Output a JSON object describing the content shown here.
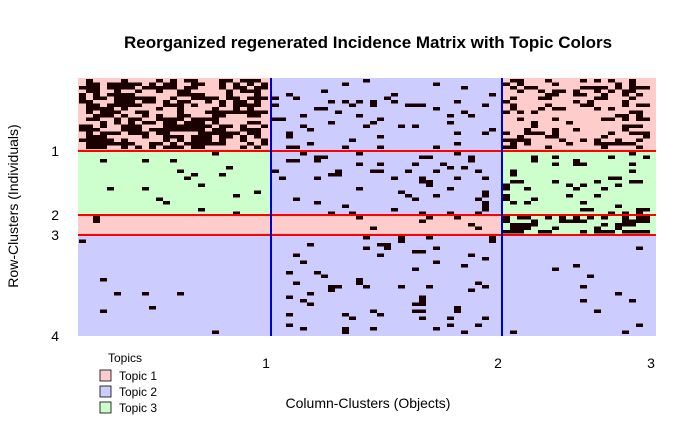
{
  "chart_data": {
    "type": "heatmap",
    "title": "Reorganized regenerated Incidence Matrix with Topic Colors",
    "xlabel": "Column-Clusters (Objects)",
    "ylabel": "Row-Clusters (Individuals)",
    "x_ticks": [
      "1",
      "2",
      "3"
    ],
    "y_ticks": [
      "1",
      "2",
      "3",
      "4"
    ],
    "legend": {
      "title": "Topics",
      "placement": "bottom-left",
      "items": [
        {
          "label": "Topic 1",
          "color": "#ffcccc"
        },
        {
          "label": "Topic 2",
          "color": "#ccccff"
        },
        {
          "label": "Topic 3",
          "color": "#ccffcc"
        }
      ]
    },
    "row_cluster_ends": [
      1,
      2,
      3,
      4
    ],
    "col_cluster_ends": [
      1,
      2,
      3
    ],
    "blocks": [
      {
        "row_cluster": 1,
        "col_cluster": 1,
        "topic": "Topic 1",
        "density": 0.55
      },
      {
        "row_cluster": 1,
        "col_cluster": 2,
        "topic": "Topic 2",
        "density": 0.08
      },
      {
        "row_cluster": 1,
        "col_cluster": 3,
        "topic": "Topic 1",
        "density": 0.28
      },
      {
        "row_cluster": 2,
        "col_cluster": 1,
        "topic": "Topic 3",
        "density": 0.03
      },
      {
        "row_cluster": 2,
        "col_cluster": 2,
        "topic": "Topic 2",
        "density": 0.1
      },
      {
        "row_cluster": 2,
        "col_cluster": 3,
        "topic": "Topic 3",
        "density": 0.12
      },
      {
        "row_cluster": 3,
        "col_cluster": 1,
        "topic": "Topic 1",
        "density": 0.02
      },
      {
        "row_cluster": 3,
        "col_cluster": 2,
        "topic": "Topic 1",
        "density": 0.05
      },
      {
        "row_cluster": 3,
        "col_cluster": 3,
        "topic": "Topic 3",
        "density": 0.45
      },
      {
        "row_cluster": 4,
        "col_cluster": 1,
        "topic": "Topic 2",
        "density": 0.01
      },
      {
        "row_cluster": 4,
        "col_cluster": 2,
        "topic": "Topic 2",
        "density": 0.06
      },
      {
        "row_cluster": 4,
        "col_cluster": 3,
        "topic": "Topic 2",
        "density": 0.01
      }
    ],
    "colors": {
      "boundary_row": "#ff0000",
      "boundary_col": "#0000cc",
      "cell": "#1a0000"
    }
  }
}
